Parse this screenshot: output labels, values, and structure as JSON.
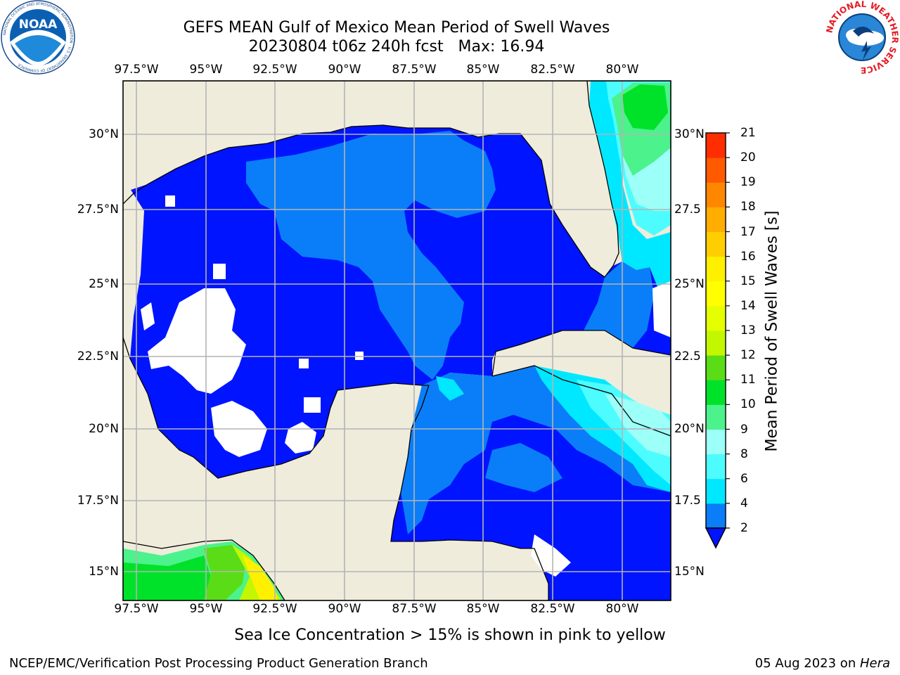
{
  "title": {
    "line1": "GEFS MEAN Gulf of Mexico Mean Period of Swell Waves",
    "line2": "20230804 t06z 240h fcst   Max: 16.94"
  },
  "x_ticks": [
    "97.5°W",
    "95°W",
    "92.5°W",
    "90°W",
    "87.5°W",
    "85°W",
    "82.5°W",
    "80°W"
  ],
  "y_ticks_left": [
    "30°N",
    "27.5°N",
    "25°N",
    "22.5°N",
    "20°N",
    "17.5°N",
    "15°N"
  ],
  "y_ticks_right": [
    "30°N",
    "27.5",
    "25°N",
    "22.5",
    "20°N",
    "17.5",
    "15°N"
  ],
  "colorbar": {
    "title": "Mean Period of Swell Waves [s]",
    "labels": [
      "2",
      "4",
      "6",
      "8",
      "9",
      "10",
      "11",
      "12",
      "13",
      "14",
      "15",
      "16",
      "17",
      "18",
      "19",
      "20",
      "21"
    ],
    "colors": [
      "#0a7ef8",
      "#00e8ff",
      "#4dfcff",
      "#9cfff8",
      "#4cf28c",
      "#00e22a",
      "#5add16",
      "#c2f700",
      "#e5ff00",
      "#ffff00",
      "#fff000",
      "#ffce00",
      "#ffad00",
      "#ff8700",
      "#ff5a00",
      "#ff2d00"
    ],
    "extend_color": "#0014ff"
  },
  "colors": {
    "land": "#efecdc",
    "swell_2_4": "#0014ff",
    "swell_4_6": "#0a7ef8",
    "swell_6_8": "#00e8ff",
    "swell_8_9": "#4dfcff",
    "swell_9_10": "#9cfff8",
    "swell_10_11": "#4cf28c",
    "swell_11_12": "#00e22a",
    "swell_12_13": "#5add16",
    "swell_13_14": "#c2f700",
    "swell_15_16": "#fff000",
    "grid": "#b4b4b4"
  },
  "note": "Sea Ice Concentration > 15% is shown in pink to yellow",
  "footer": {
    "left": "NCEP/EMC/Verification Post Processing Product Generation Branch",
    "right_date": "05 Aug 2023 on ",
    "right_host": "Hera"
  },
  "logos": {
    "noaa_text": "NOAA",
    "noaa_ring": "NATIONAL OCEANIC AND ATMOSPHERIC ADMINISTRATION · U.S. DEPARTMENT OF COMMERCE",
    "nws_ring": "NATIONAL WEATHER SERVICE"
  }
}
